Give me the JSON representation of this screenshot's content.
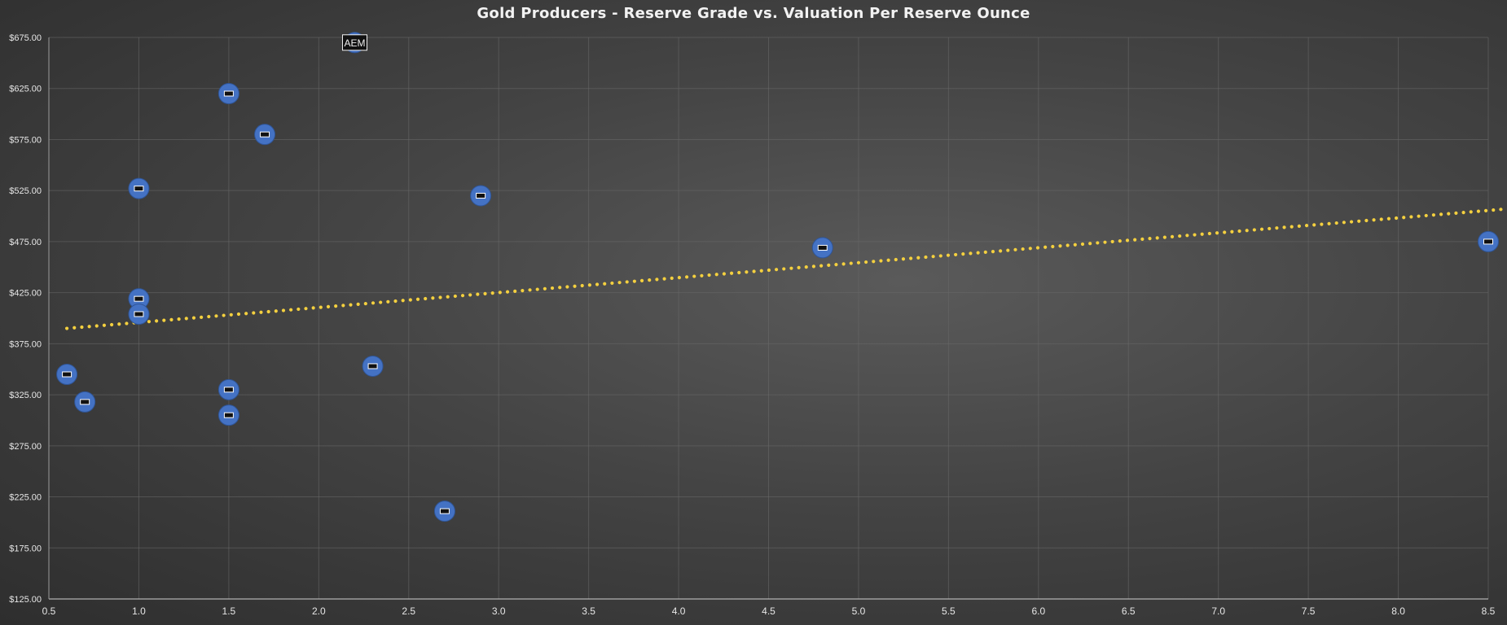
{
  "chart_data": {
    "type": "scatter",
    "title": "Gold Producers - Reserve Grade vs. Valuation Per Reserve Ounce",
    "xlabel": "",
    "ylabel": "",
    "xlim": [
      0.5,
      8.5
    ],
    "ylim": [
      125,
      675
    ],
    "x_ticks": [
      "0.5",
      "1.0",
      "1.5",
      "2.0",
      "2.5",
      "3.0",
      "3.5",
      "4.0",
      "4.5",
      "5.0",
      "5.5",
      "6.0",
      "6.5",
      "7.0",
      "7.5",
      "8.0",
      "8.5"
    ],
    "y_ticks": [
      "$125.00",
      "$175.00",
      "$225.00",
      "$275.00",
      "$325.00",
      "$375.00",
      "$425.00",
      "$475.00",
      "$525.00",
      "$575.00",
      "$625.00",
      "$675.00"
    ],
    "grid": true,
    "legend": "none",
    "series": [
      {
        "marker_color": "#4472c4",
        "points": [
          {
            "x": 0.6,
            "y": 345
          },
          {
            "x": 0.7,
            "y": 318
          },
          {
            "x": 1.0,
            "y": 527
          },
          {
            "x": 1.0,
            "y": 419
          },
          {
            "x": 1.0,
            "y": 404
          },
          {
            "x": 1.5,
            "y": 620
          },
          {
            "x": 1.5,
            "y": 330
          },
          {
            "x": 1.5,
            "y": 305
          },
          {
            "x": 1.7,
            "y": 580
          },
          {
            "x": 2.2,
            "y": 670,
            "label": "AEM"
          },
          {
            "x": 2.3,
            "y": 353
          },
          {
            "x": 2.7,
            "y": 211
          },
          {
            "x": 2.9,
            "y": 520
          },
          {
            "x": 4.8,
            "y": 469
          },
          {
            "x": 8.5,
            "y": 475
          }
        ]
      }
    ],
    "trendline": {
      "style": "dotted",
      "color": "#f4d03f",
      "start": {
        "x": 0.6,
        "y": 390
      },
      "end": {
        "x": 8.6,
        "y": 507
      }
    }
  }
}
